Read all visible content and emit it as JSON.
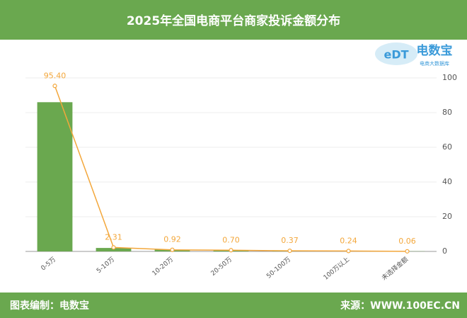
{
  "chart_data": {
    "type": "bar",
    "title": "2025年全国电商平台商家投诉金额分布",
    "categories": [
      "0-5万",
      "5-10万",
      "10-20万",
      "20-50万",
      "50-100万",
      "100万以上",
      "未选择金额"
    ],
    "series": [
      {
        "type": "bar",
        "color": "#6aa84f",
        "values": [
          86,
          2,
          1,
          0.7,
          0.4,
          0.2,
          0.1
        ]
      },
      {
        "type": "line",
        "color": "#f3a73b",
        "values": [
          95.4,
          2.31,
          0.92,
          0.7,
          0.37,
          0.24,
          0.06
        ],
        "value_labels": [
          "95.40",
          "2.31",
          "0.92",
          "0.70",
          "0.37",
          "0.24",
          "0.06"
        ]
      }
    ],
    "ylim": [
      0,
      100
    ],
    "yticks": [
      0,
      20,
      40,
      60,
      80,
      100
    ],
    "grid": true
  },
  "logo": {
    "mark": "eDT",
    "name": "电数宝",
    "tagline": "电商大数据库"
  },
  "footer": {
    "left": "图表编制：电数宝",
    "right": "来源：WWW.100EC.CN"
  }
}
